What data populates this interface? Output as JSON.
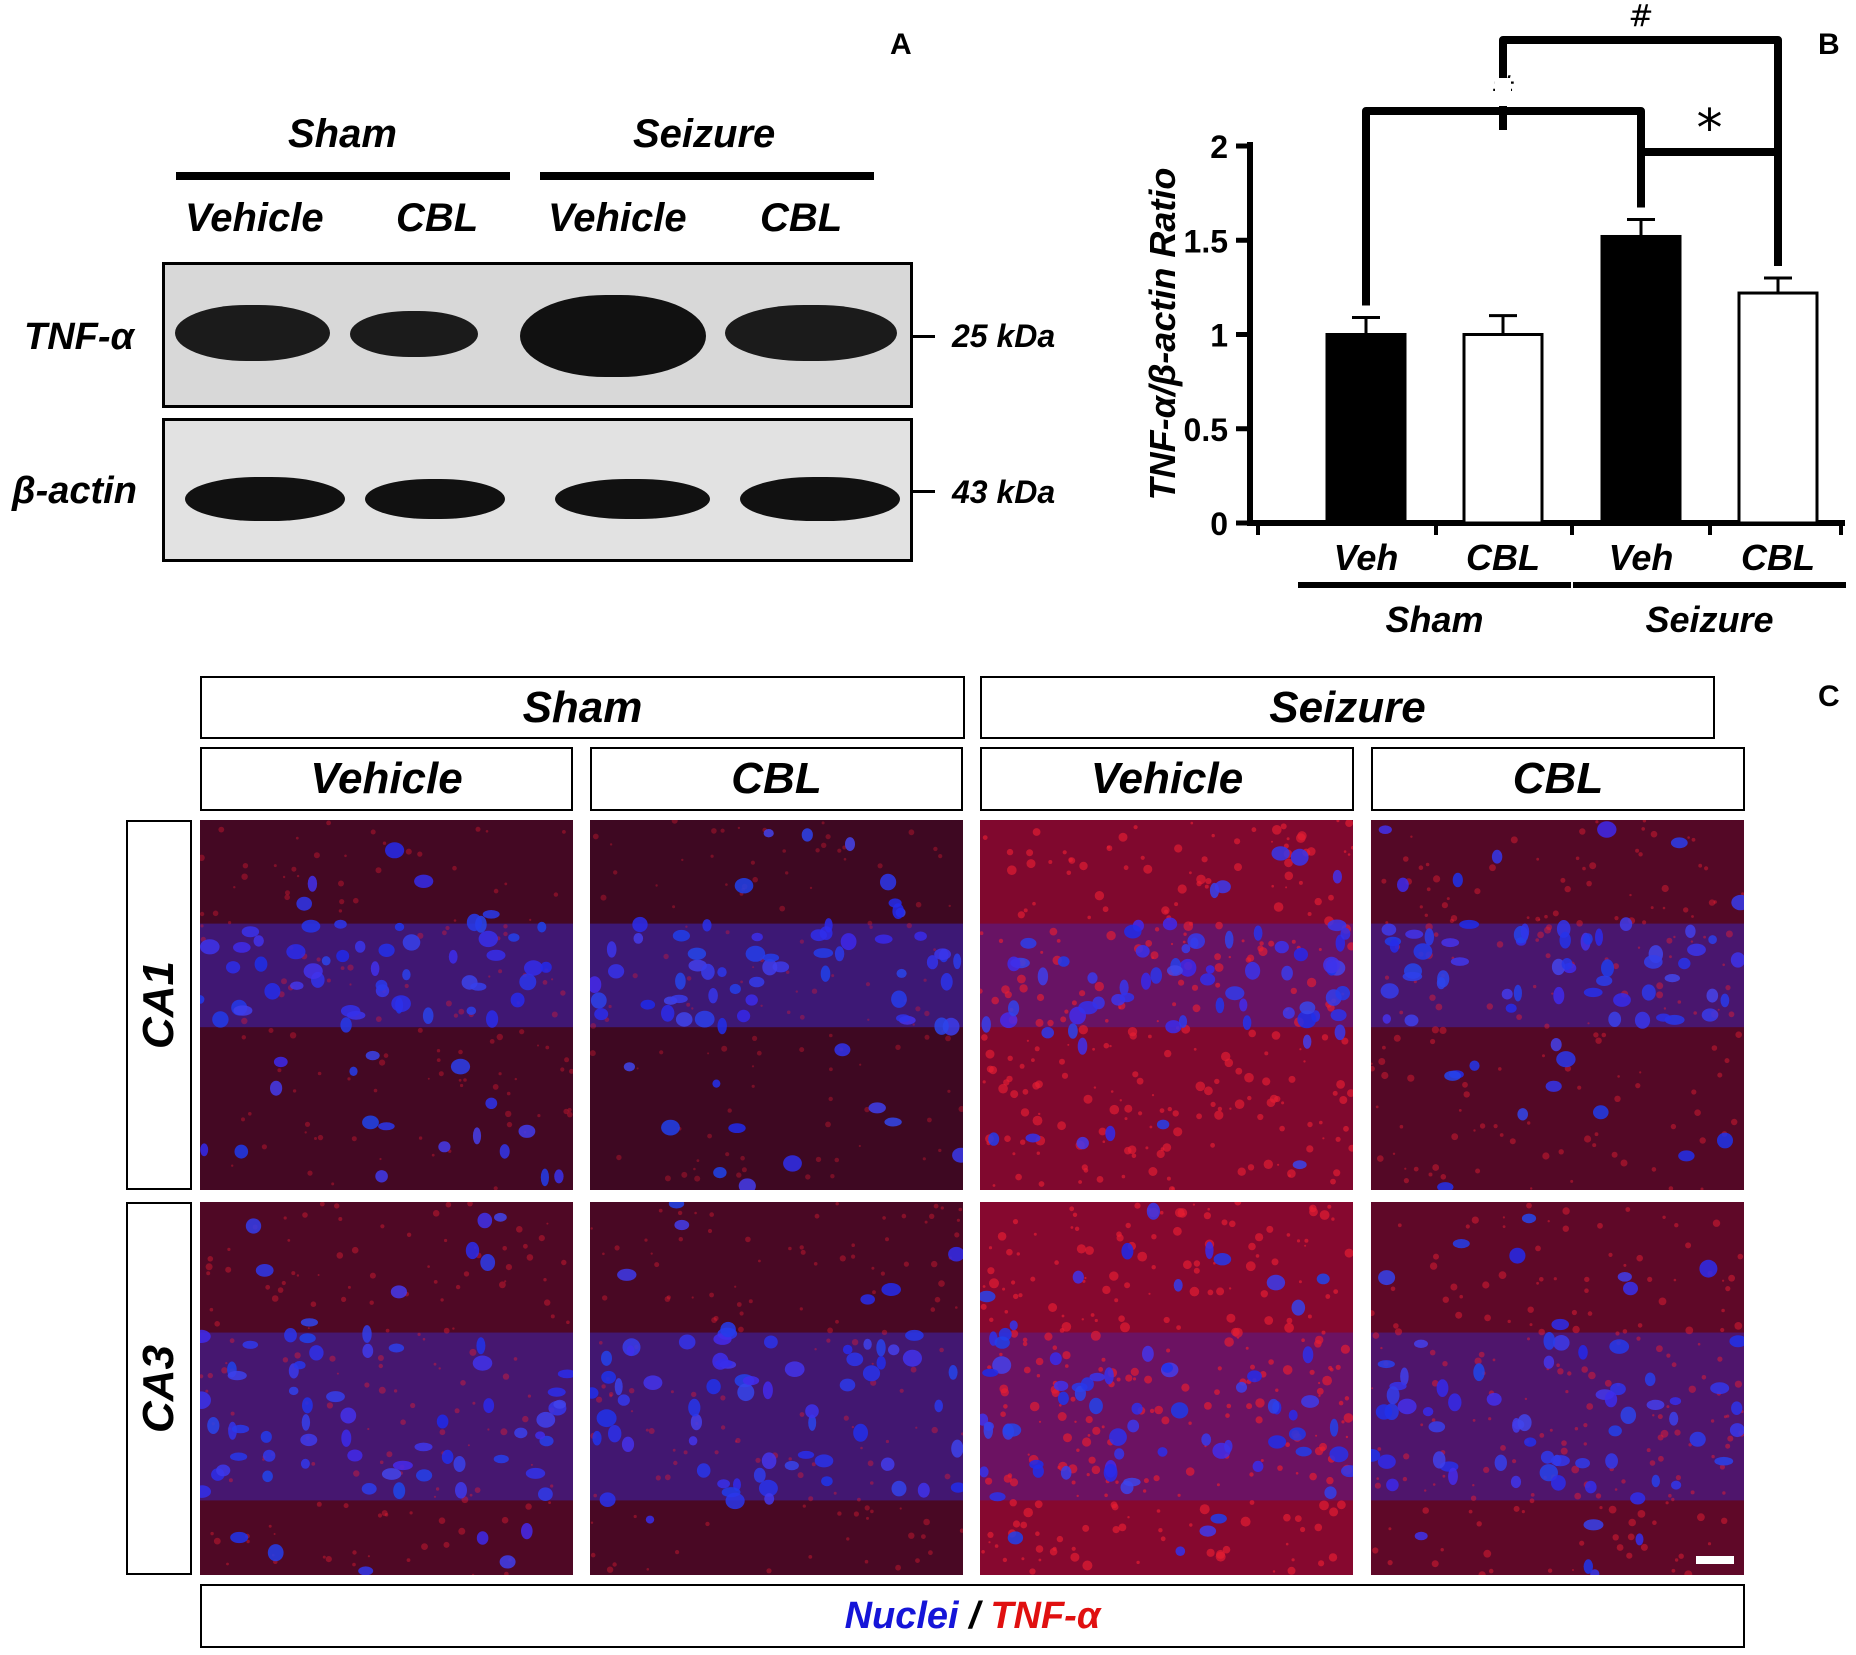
{
  "panel_labels": {
    "a": "A",
    "b": "B",
    "c": "C"
  },
  "panel_a": {
    "groups": [
      "Sham",
      "Seizure"
    ],
    "lanes": [
      "Vehicle",
      "CBL",
      "Vehicle",
      "CBL"
    ],
    "rows": [
      {
        "protein": "TNF-α",
        "size": "25 kDa",
        "intensity": [
          0.72,
          0.64,
          1.0,
          0.76
        ]
      },
      {
        "protein": "β-actin",
        "size": "43 kDa",
        "intensity": [
          1.0,
          0.9,
          0.9,
          0.9
        ]
      }
    ]
  },
  "chart_data": {
    "type": "bar",
    "ylabel": "TNF-α/β-actin Ratio",
    "categories": [
      "Veh",
      "CBL",
      "Veh",
      "CBL"
    ],
    "groups": [
      {
        "label": "Sham",
        "categories": [
          0,
          1
        ]
      },
      {
        "label": "Seizure",
        "categories": [
          2,
          3
        ]
      }
    ],
    "values": [
      1.0,
      1.0,
      1.52,
      1.22
    ],
    "errors": [
      0.09,
      0.1,
      0.09,
      0.08
    ],
    "bar_colors": [
      "#000000",
      "#ffffff",
      "#000000",
      "#ffffff"
    ],
    "ylim": [
      0,
      2
    ],
    "yticks": [
      "0",
      "0.5",
      "1",
      "1.5",
      "2"
    ],
    "significance": [
      {
        "from": 0,
        "to": 2,
        "symbol": "#"
      },
      {
        "from": 1,
        "to": 3,
        "symbol": "#"
      },
      {
        "from": 2,
        "to": 3,
        "symbol": "*"
      }
    ]
  },
  "panel_c": {
    "groups": [
      "Sham",
      "Seizure"
    ],
    "columns": [
      "Vehicle",
      "CBL",
      "Vehicle",
      "CBL"
    ],
    "rows": [
      "CA1",
      "CA3"
    ],
    "legend": {
      "nuclei": "Nuclei",
      "sep": " / ",
      "marker": "TNF-α"
    },
    "colors": {
      "nuclei": "#1515d8",
      "marker": "#e01010"
    },
    "red_intensity": [
      [
        0.25,
        0.2,
        0.8,
        0.4
      ],
      [
        0.35,
        0.3,
        0.85,
        0.5
      ]
    ]
  }
}
